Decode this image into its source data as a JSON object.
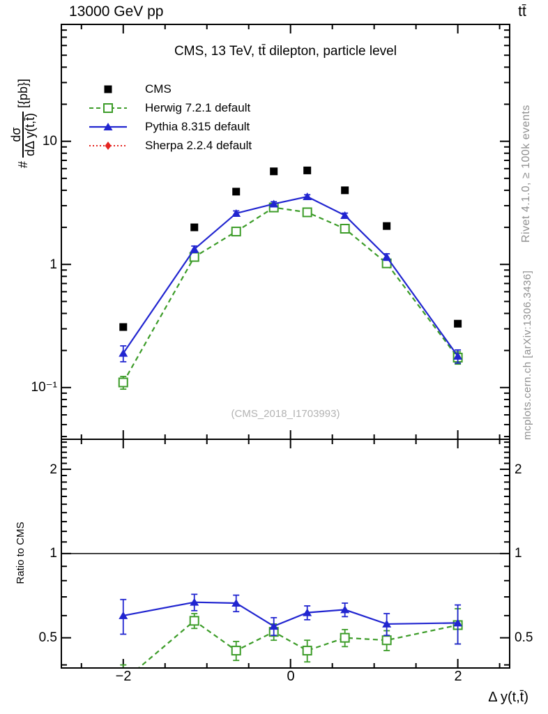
{
  "header": {
    "left": "13000 GeV pp",
    "right": "tt̄"
  },
  "title": "CMS, 13 TeV, tt̄ dilepton, particle level",
  "watermark": "(CMS_2018_I1703993)",
  "side_notes": {
    "top": "Rivet 4.1.0, ≥ 100k events",
    "bottom": "mcplots.cern.ch [arXiv:1306.3436]"
  },
  "axes": {
    "x_label": "Δ y(t,t̄)",
    "x_ticks": [
      "−2",
      "0",
      "2"
    ],
    "y_label": {
      "prefix": "#",
      "numerator": "dσ",
      "denominator": "dΔ y(t,t̄)",
      "suffix": "[{pb}]"
    },
    "y_ticks": [
      "10",
      "1",
      "10⁻¹"
    ],
    "ratio_label": "Ratio to CMS",
    "ratio_ticks_left": [
      "2",
      "1",
      "0.5"
    ],
    "ratio_ticks_right": [
      "2",
      "1",
      "0.5"
    ]
  },
  "legend": [
    {
      "label": "CMS"
    },
    {
      "label": "Herwig 7.2.1 default"
    },
    {
      "label": "Pythia 8.315 default"
    },
    {
      "label": "Sherpa 2.2.4 default"
    }
  ],
  "colors": {
    "cms": "#000000",
    "herwig": "#3c9c28",
    "pythia": "#2125d0",
    "sherpa": "#e52420",
    "frame": "#000000",
    "ref_line": "#000000",
    "muted": "#909090",
    "watermark": "#b3b3b3"
  },
  "chart_data": [
    {
      "type": "line",
      "panel": "main",
      "title": "CMS, 13 TeV, tt̄ dilepton, particle level",
      "xlabel": "Δ y(t,t̄)",
      "ylabel": "# dσ/dΔ y(t,t̄) [{pb}]",
      "xscale": "linear",
      "yscale": "log",
      "xlim": [
        -2.74,
        2.62
      ],
      "ylim": [
        0.038,
        89
      ],
      "x_major_ticks": [
        -2,
        0,
        2
      ],
      "x_minor_step": 0.5,
      "y_major_ticks": [
        10,
        1,
        0.1
      ],
      "grid": false,
      "legend_position": "top-left-inside",
      "x": [
        -2.0,
        -1.15,
        -0.65,
        -0.2,
        0.2,
        0.65,
        1.15,
        2.0
      ],
      "series": [
        {
          "name": "CMS",
          "color_key": "cms",
          "marker": "square-filled",
          "line": "none",
          "values": [
            0.31,
            2.0,
            3.9,
            5.7,
            5.8,
            4.0,
            2.05,
            0.33
          ],
          "yerr": [
            0,
            0,
            0,
            0,
            0,
            0,
            0,
            0
          ]
        },
        {
          "name": "Herwig 7.2.1 default",
          "color_key": "herwig",
          "marker": "square-open",
          "line": "dashed",
          "values": [
            0.11,
            1.15,
            1.85,
            2.9,
            2.65,
            1.95,
            1.02,
            0.175
          ],
          "yerr": [
            0.013,
            0.06,
            0.09,
            0.12,
            0.1,
            0.08,
            0.055,
            0.02
          ]
        },
        {
          "name": "Pythia 8.315 default",
          "color_key": "pythia",
          "marker": "triangle-filled",
          "line": "solid",
          "values": [
            0.19,
            1.33,
            2.6,
            3.1,
            3.55,
            2.5,
            1.15,
            0.18
          ],
          "yerr": [
            0.028,
            0.08,
            0.12,
            0.13,
            0.13,
            0.11,
            0.07,
            0.022
          ]
        },
        {
          "name": "Sherpa 2.2.4 default",
          "color_key": "sherpa",
          "marker": "diamond-filled",
          "line": "dotted",
          "values": [],
          "yerr": []
        }
      ]
    },
    {
      "type": "line",
      "panel": "ratio",
      "ylabel": "Ratio to CMS",
      "xscale": "linear",
      "yscale": "log",
      "xlim": [
        -2.74,
        2.62
      ],
      "ylim": [
        0.39,
        2.56
      ],
      "ref_line": 1,
      "x_major_ticks": [
        -2,
        0,
        2
      ],
      "x_minor_step": 0.5,
      "y_major_ticks": [
        2,
        1,
        0.5
      ],
      "x": [
        -2.0,
        -1.15,
        -0.65,
        -0.2,
        0.2,
        0.65,
        1.15,
        2.0
      ],
      "series": [
        {
          "name": "Herwig 7.2.1 default",
          "color_key": "herwig",
          "marker": "square-open",
          "line": "dashed",
          "values": [
            0.35,
            0.575,
            0.45,
            0.525,
            0.45,
            0.5,
            0.49,
            0.555
          ],
          "yerr": [
            0.05,
            0.035,
            0.035,
            0.035,
            0.04,
            0.035,
            0.04,
            0.08
          ]
        },
        {
          "name": "Pythia 8.315 default",
          "color_key": "pythia",
          "marker": "triangle-filled",
          "line": "solid",
          "values": [
            0.6,
            0.67,
            0.665,
            0.55,
            0.615,
            0.63,
            0.56,
            0.565
          ],
          "yerr": [
            0.085,
            0.045,
            0.045,
            0.04,
            0.035,
            0.035,
            0.05,
            0.09
          ]
        }
      ]
    }
  ]
}
